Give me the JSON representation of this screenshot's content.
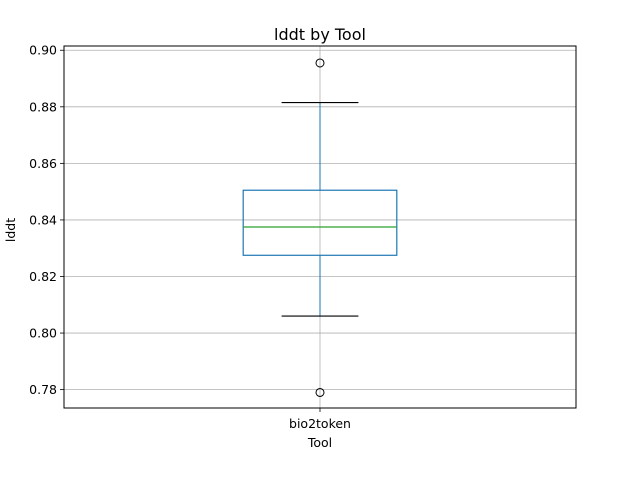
{
  "chart_data": {
    "type": "box",
    "title": "lddt by Tool",
    "xlabel": "Tool",
    "ylabel": "lddt",
    "categories": [
      "bio2token"
    ],
    "ylim": [
      0.7735,
      0.9015
    ],
    "yticks": [
      0.78,
      0.8,
      0.82,
      0.84,
      0.86,
      0.88,
      0.9
    ],
    "ytick_labels": [
      "0.78",
      "0.80",
      "0.82",
      "0.84",
      "0.86",
      "0.88",
      "0.90"
    ],
    "grid": true,
    "boxes": [
      {
        "category": "bio2token",
        "whisker_low": 0.806,
        "q1": 0.8275,
        "median": 0.8375,
        "q3": 0.8505,
        "whisker_high": 0.8815,
        "outliers": [
          0.779,
          0.8955
        ]
      }
    ],
    "colors": {
      "box": "#1f77b4",
      "median": "#2ca02c",
      "caps": "#000000",
      "grid": "#b0b0b0",
      "outlier": "#000000"
    }
  }
}
